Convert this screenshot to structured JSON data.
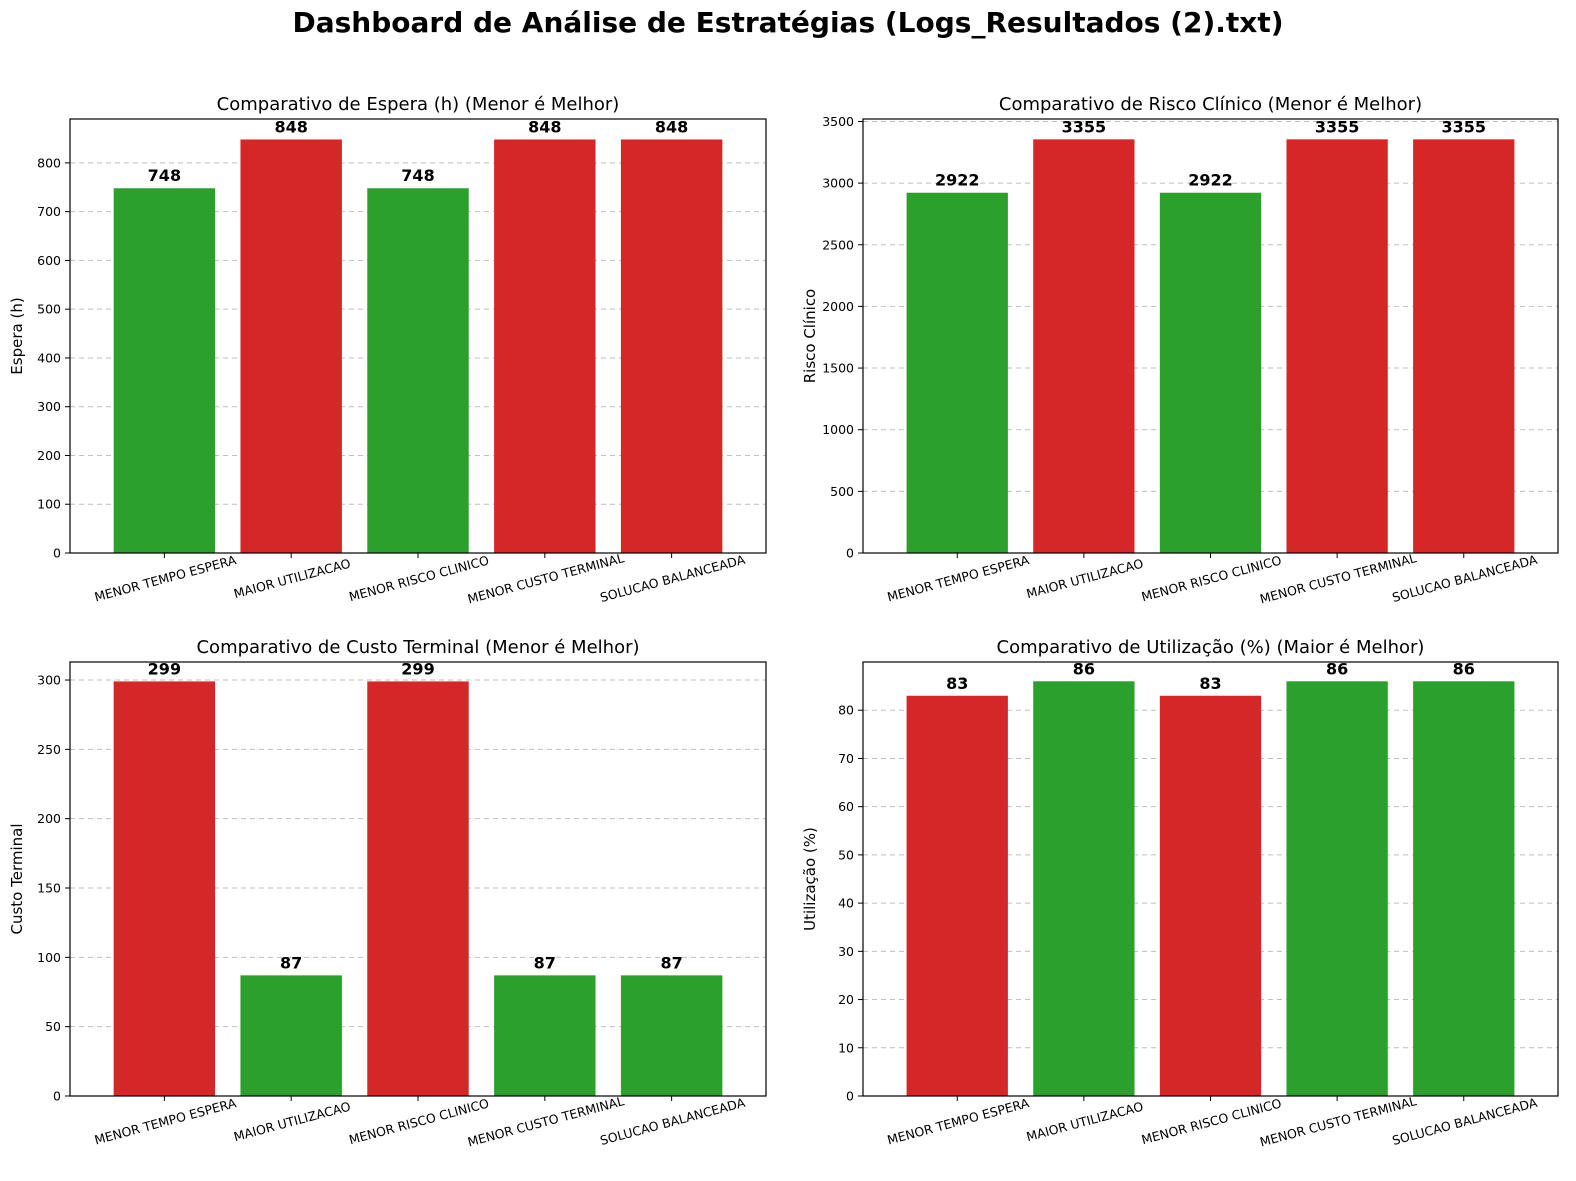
{
  "page": {
    "title": "Dashboard de Análise de Estratégias (Logs_Resultados (2).txt)"
  },
  "colors": {
    "good": "#2ca02c",
    "bad": "#d62728",
    "grid": "#b0b0b0",
    "axis": "#000000"
  },
  "chart_data": [
    {
      "type": "bar",
      "title": "Comparativo de Espera (h) (Menor é Melhor)",
      "xlabel": "",
      "ylabel": "Espera (h)",
      "categories": [
        "MENOR TEMPO ESPERA",
        "MAIOR UTILIZACAO",
        "MENOR RISCO CLINICO",
        "MENOR CUSTO TERMINAL",
        "SOLUCAO BALANCEADA"
      ],
      "values": [
        748,
        848,
        748,
        848,
        848
      ],
      "value_labels": [
        "748",
        "848",
        "748",
        "848",
        "848"
      ],
      "bar_colors": [
        "good",
        "bad",
        "good",
        "bad",
        "bad"
      ],
      "ylim": [
        0,
        890
      ],
      "yticks": [
        0,
        100,
        200,
        300,
        400,
        500,
        600,
        700,
        800
      ],
      "ytick_labels": [
        "0",
        "100",
        "200",
        "300",
        "400",
        "500",
        "600",
        "700",
        "800"
      ],
      "grid": "y-dashed"
    },
    {
      "type": "bar",
      "title": "Comparativo de Risco Clínico (Menor é Melhor)",
      "xlabel": "",
      "ylabel": "Risco Clínico",
      "categories": [
        "MENOR TEMPO ESPERA",
        "MAIOR UTILIZACAO",
        "MENOR RISCO CLINICO",
        "MENOR CUSTO TERMINAL",
        "SOLUCAO BALANCEADA"
      ],
      "values": [
        2922,
        3355,
        2922,
        3355,
        3355
      ],
      "value_labels": [
        "2922",
        "3355",
        "2922",
        "3355",
        "3355"
      ],
      "bar_colors": [
        "good",
        "bad",
        "good",
        "bad",
        "bad"
      ],
      "ylim": [
        0,
        3520
      ],
      "yticks": [
        0,
        500,
        1000,
        1500,
        2000,
        2500,
        3000,
        3500
      ],
      "ytick_labels": [
        "0",
        "500",
        "1000",
        "1500",
        "2000",
        "2500",
        "3000",
        "3500"
      ],
      "grid": "y-dashed"
    },
    {
      "type": "bar",
      "title": "Comparativo de Custo Terminal (Menor é Melhor)",
      "xlabel": "",
      "ylabel": "Custo Terminal",
      "categories": [
        "MENOR TEMPO ESPERA",
        "MAIOR UTILIZACAO",
        "MENOR RISCO CLINICO",
        "MENOR CUSTO TERMINAL",
        "SOLUCAO BALANCEADA"
      ],
      "values": [
        299,
        87,
        299,
        87,
        87
      ],
      "value_labels": [
        "299",
        "87",
        "299",
        "87",
        "87"
      ],
      "bar_colors": [
        "bad",
        "good",
        "bad",
        "good",
        "good"
      ],
      "ylim": [
        0,
        313
      ],
      "yticks": [
        0,
        50,
        100,
        150,
        200,
        250,
        300
      ],
      "ytick_labels": [
        "0",
        "50",
        "100",
        "150",
        "200",
        "250",
        "300"
      ],
      "grid": "y-dashed"
    },
    {
      "type": "bar",
      "title": "Comparativo de Utilização (%) (Maior é Melhor)",
      "xlabel": "",
      "ylabel": "Utilização (%)",
      "categories": [
        "MENOR TEMPO ESPERA",
        "MAIOR UTILIZACAO",
        "MENOR RISCO CLINICO",
        "MENOR CUSTO TERMINAL",
        "SOLUCAO BALANCEADA"
      ],
      "values": [
        83,
        86,
        83,
        86,
        86
      ],
      "value_labels": [
        "83",
        "86",
        "83",
        "86",
        "86"
      ],
      "bar_colors": [
        "bad",
        "good",
        "bad",
        "good",
        "good"
      ],
      "ylim": [
        0,
        90
      ],
      "yticks": [
        0,
        10,
        20,
        30,
        40,
        50,
        60,
        70,
        80
      ],
      "ytick_labels": [
        "0",
        "10",
        "20",
        "30",
        "40",
        "50",
        "60",
        "70",
        "80"
      ],
      "grid": "y-dashed"
    }
  ]
}
